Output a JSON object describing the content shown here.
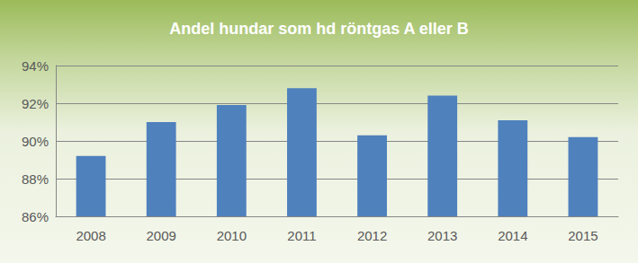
{
  "chart_data": {
    "type": "bar",
    "title": "Andel hundar som hd röntgas A eller B",
    "categories": [
      "2008",
      "2009",
      "2010",
      "2011",
      "2012",
      "2013",
      "2014",
      "2015"
    ],
    "values": [
      89.2,
      91.0,
      91.9,
      92.8,
      90.3,
      92.4,
      91.1,
      90.2
    ],
    "color": "#4f81bd",
    "ylim": [
      86,
      94
    ],
    "yticks": [
      {
        "value": 86,
        "label": "86%"
      },
      {
        "value": 88,
        "label": "88%"
      },
      {
        "value": 90,
        "label": "90%"
      },
      {
        "value": 92,
        "label": "92%"
      },
      {
        "value": 94,
        "label": "94%"
      }
    ],
    "grid": true
  }
}
